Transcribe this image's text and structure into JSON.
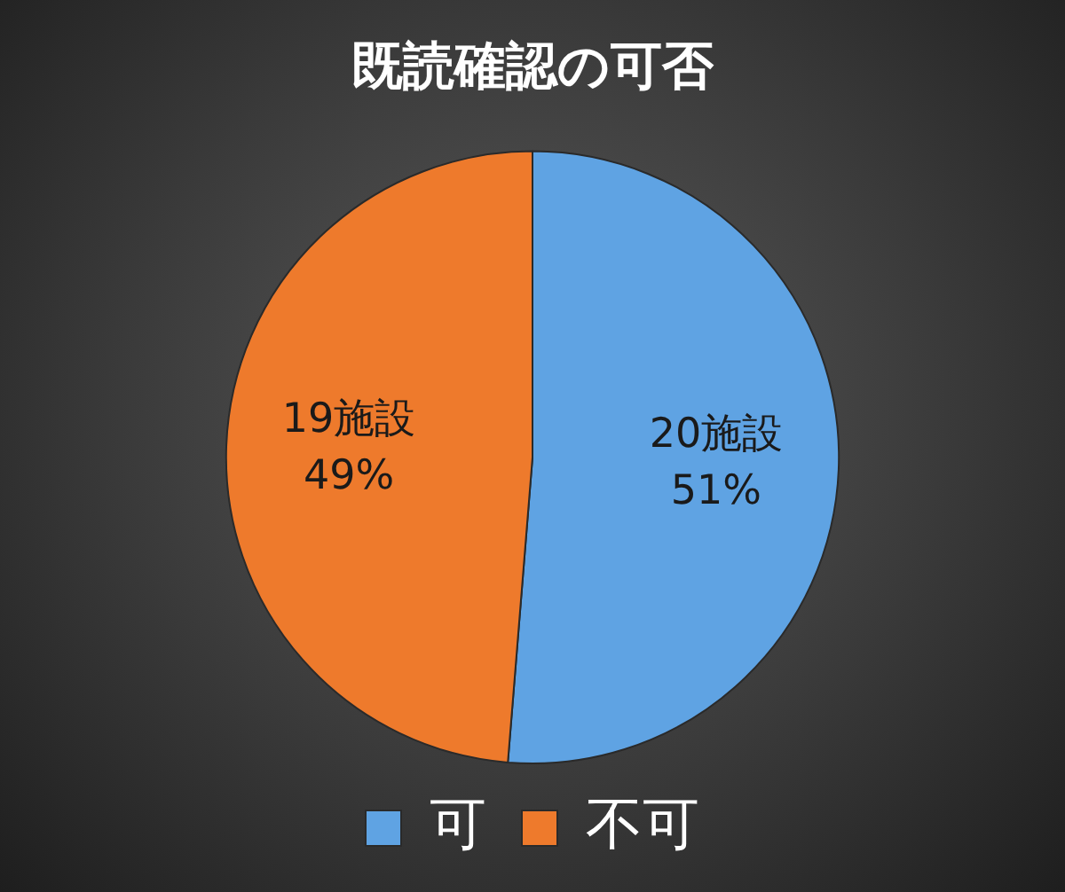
{
  "chart_data": {
    "type": "pie",
    "title": "既読確認の可否",
    "categories": [
      "可",
      "不可"
    ],
    "values": [
      20,
      19
    ],
    "colors": [
      "#5fa3e3",
      "#ee7a2c"
    ],
    "value_labels": [
      "20施設\n51%",
      "19施設\n49%"
    ],
    "legend": "bottom"
  }
}
